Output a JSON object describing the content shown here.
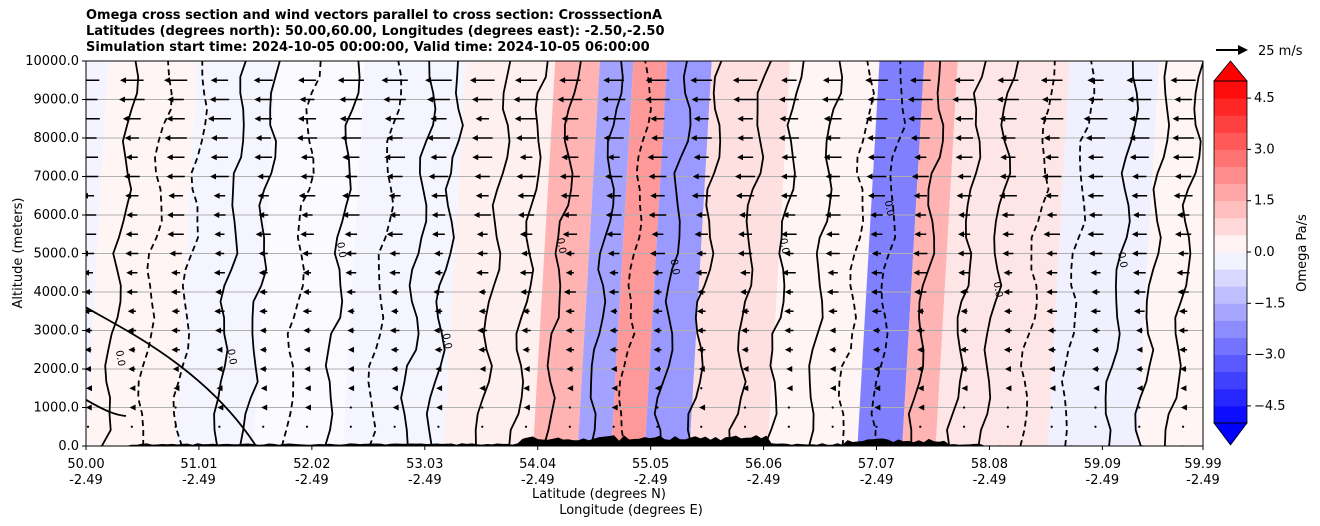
{
  "chart_data": {
    "type": "heatmap",
    "title_lines": [
      "Omega cross section and wind vectors parallel to cross section: CrosssectionA",
      "Latitudes (degrees north): 50.00,60.00, Longitudes (degrees east): -2.50,-2.50",
      "Simulation start time: 2024-10-05 00:00:00, Valid time: 2024-10-05 06:00:00"
    ],
    "ylabel": "Altitude (meters)",
    "xlabel_lines": [
      "Latitude (degrees N)",
      "Longitude (degrees E)"
    ],
    "ylim": [
      0,
      10000
    ],
    "y_ticks": [
      0,
      1000,
      2000,
      3000,
      4000,
      5000,
      6000,
      7000,
      8000,
      9000,
      10000
    ],
    "y_tick_labels": [
      "0.0",
      "1000.0",
      "2000.0",
      "3000.0",
      "4000.0",
      "5000.0",
      "6000.0",
      "7000.0",
      "8000.0",
      "9000.0",
      "10000.0"
    ],
    "xlim": [
      50.0,
      59.99
    ],
    "x_ticks": [
      50.0,
      51.01,
      52.02,
      53.03,
      54.04,
      55.05,
      56.06,
      57.07,
      58.08,
      59.09,
      59.99
    ],
    "x_tick_labels_lat": [
      "50.00",
      "51.01",
      "52.02",
      "53.03",
      "54.04",
      "55.05",
      "56.06",
      "57.07",
      "58.08",
      "59.09",
      "59.99"
    ],
    "x_tick_labels_lon": [
      "-2.49",
      "-2.49",
      "-2.49",
      "-2.49",
      "-2.49",
      "-2.49",
      "-2.49",
      "-2.49",
      "-2.49",
      "-2.49",
      "-2.49"
    ],
    "grid": "horizontal",
    "colorbar": {
      "label": "Omega Pa/s",
      "range": [
        -5,
        5
      ],
      "ticks": [
        -4.5,
        -3.0,
        -1.5,
        0.0,
        1.5,
        3.0,
        4.5
      ],
      "tick_labels": [
        "−4.5",
        "−3.0",
        "−1.5",
        "0.0",
        "1.5",
        "3.0",
        "4.5"
      ],
      "colormap": "bwr",
      "extend": "both"
    },
    "quiver_key": {
      "label": "25 m/s",
      "value": 25
    },
    "omega_bands": [
      {
        "lat_start": 50.0,
        "lat_end": 50.8,
        "omega": 0.2
      },
      {
        "lat_start": 50.8,
        "lat_end": 51.5,
        "omega": -0.2
      },
      {
        "lat_start": 51.5,
        "lat_end": 52.3,
        "omega": -0.1
      },
      {
        "lat_start": 52.3,
        "lat_end": 53.2,
        "omega": -0.2
      },
      {
        "lat_start": 53.2,
        "lat_end": 54.0,
        "omega": 0.3
      },
      {
        "lat_start": 54.0,
        "lat_end": 54.4,
        "omega": 1.5
      },
      {
        "lat_start": 54.4,
        "lat_end": 54.7,
        "omega": -1.8
      },
      {
        "lat_start": 54.7,
        "lat_end": 55.0,
        "omega": 2.0
      },
      {
        "lat_start": 55.0,
        "lat_end": 55.4,
        "omega": -2.0
      },
      {
        "lat_start": 55.4,
        "lat_end": 56.1,
        "omega": 0.6
      },
      {
        "lat_start": 56.1,
        "lat_end": 56.9,
        "omega": 0.2
      },
      {
        "lat_start": 56.9,
        "lat_end": 57.3,
        "omega": -2.5
      },
      {
        "lat_start": 57.3,
        "lat_end": 57.6,
        "omega": 1.5
      },
      {
        "lat_start": 57.6,
        "lat_end": 58.6,
        "omega": 0.5
      },
      {
        "lat_start": 58.6,
        "lat_end": 59.4,
        "omega": -0.3
      },
      {
        "lat_start": 59.4,
        "lat_end": 59.99,
        "omega": 0.2
      }
    ],
    "contour_label_values": [
      "0.0",
      "1.0",
      "-1.0"
    ]
  }
}
